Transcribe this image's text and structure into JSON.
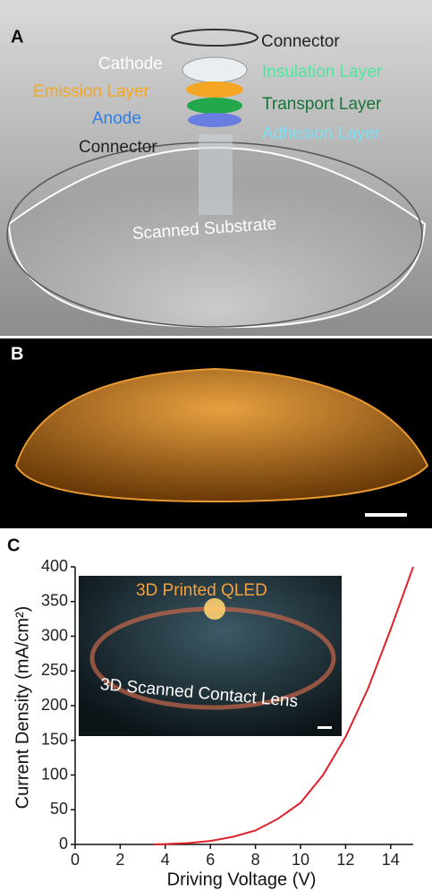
{
  "figure": {
    "panel_a": {
      "label": "A",
      "connector_top": "Connector",
      "cathode": "Cathode",
      "insulation": "Insulation Layer",
      "emission": "Emission Layer",
      "transport": "Transport Layer",
      "anode": "Anode",
      "adhesion": "Adhesion Layer",
      "connector_bottom": "Connector",
      "substrate": "Scanned Substrate"
    },
    "panel_b": {
      "label": "B"
    }
  },
  "chart_data": {
    "type": "line",
    "panel_label": "C",
    "x_label": "Driving Voltage (V)",
    "y_label": "Current Density (mA/cm²)",
    "x": [
      3.5,
      4,
      5,
      6,
      7,
      8,
      9,
      10,
      11,
      12,
      13,
      14,
      15
    ],
    "values": [
      0,
      0.5,
      2,
      5,
      11,
      20,
      37,
      60,
      100,
      155,
      225,
      310,
      400
    ],
    "color": "#e0202a",
    "xlim": [
      0,
      15
    ],
    "ylim": [
      0,
      400
    ],
    "xticks": [
      0,
      2,
      4,
      6,
      8,
      10,
      12,
      14
    ],
    "yticks": [
      0,
      50,
      100,
      150,
      200,
      250,
      300,
      350,
      400
    ],
    "annotations": [
      "3D Printed QLED",
      "3D Scanned Contact Lens"
    ]
  }
}
